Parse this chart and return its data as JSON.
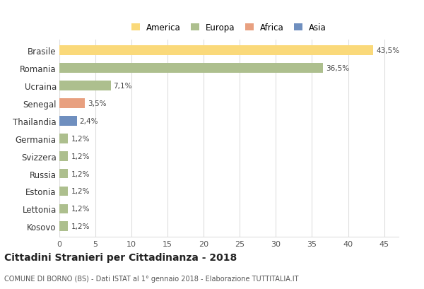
{
  "countries": [
    "Brasile",
    "Romania",
    "Ucraina",
    "Senegal",
    "Thailandia",
    "Germania",
    "Svizzera",
    "Russia",
    "Estonia",
    "Lettonia",
    "Kosovo"
  ],
  "values": [
    43.5,
    36.5,
    7.1,
    3.5,
    2.4,
    1.2,
    1.2,
    1.2,
    1.2,
    1.2,
    1.2
  ],
  "labels": [
    "43,5%",
    "36,5%",
    "7,1%",
    "3,5%",
    "2,4%",
    "1,2%",
    "1,2%",
    "1,2%",
    "1,2%",
    "1,2%",
    "1,2%"
  ],
  "bar_colors": [
    "#FAD97A",
    "#ADBF8E",
    "#ADBF8E",
    "#E8A080",
    "#6F8FBF",
    "#ADBF8E",
    "#ADBF8E",
    "#ADBF8E",
    "#ADBF8E",
    "#ADBF8E",
    "#ADBF8E"
  ],
  "legend_labels": [
    "America",
    "Europa",
    "Africa",
    "Asia"
  ],
  "legend_colors": [
    "#FAD97A",
    "#ADBF8E",
    "#E8A080",
    "#6F8FBF"
  ],
  "title": "Cittadini Stranieri per Cittadinanza - 2018",
  "subtitle": "COMUNE DI BORNO (BS) - Dati ISTAT al 1° gennaio 2018 - Elaborazione TUTTITALIA.IT",
  "xlim": [
    0,
    47
  ],
  "xticks": [
    0,
    5,
    10,
    15,
    20,
    25,
    30,
    35,
    40,
    45
  ],
  "background_color": "#FFFFFF",
  "grid_color": "#DEDEDE"
}
